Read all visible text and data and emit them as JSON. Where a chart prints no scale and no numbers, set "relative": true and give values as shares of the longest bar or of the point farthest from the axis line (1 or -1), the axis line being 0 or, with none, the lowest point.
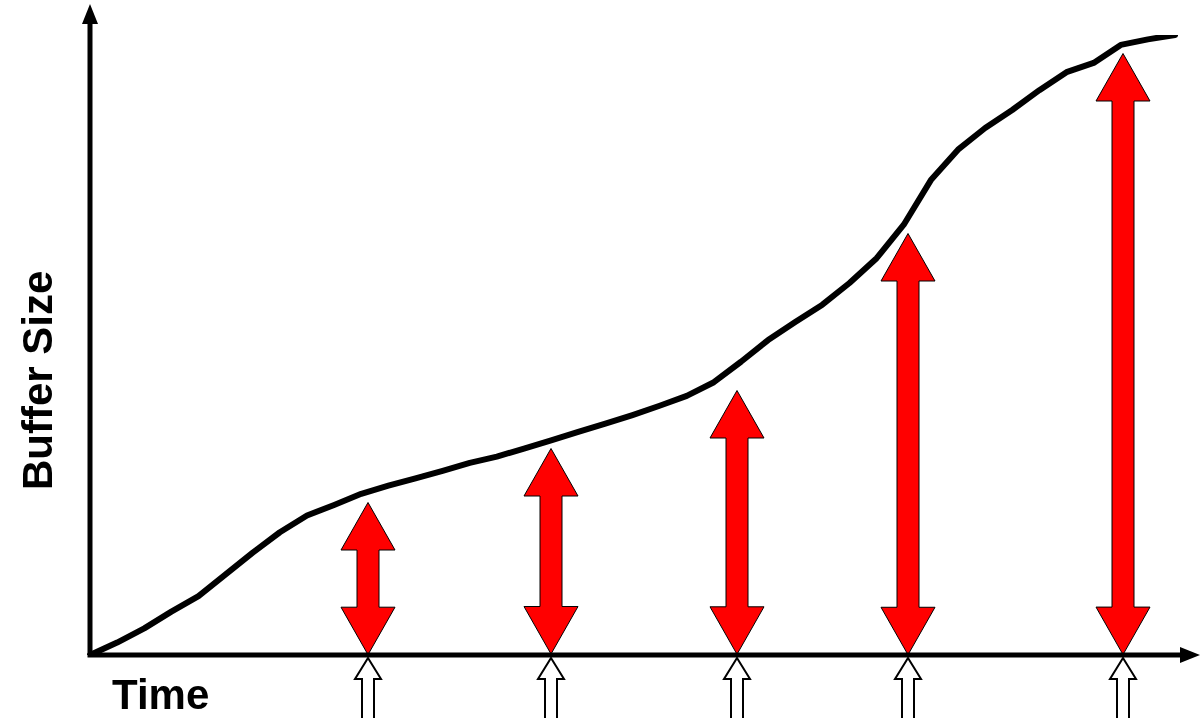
{
  "chart_data": {
    "type": "line",
    "xlabel": "Time",
    "ylabel": "Buffer Size",
    "relative": true,
    "marker": "none",
    "line_style": "solid",
    "categories": [
      null,
      null,
      null,
      null,
      null,
      null,
      null,
      null,
      null,
      null,
      null,
      null,
      null,
      null,
      null,
      null,
      null,
      null,
      null,
      null,
      null,
      null,
      null,
      null,
      null,
      null,
      null,
      null,
      null,
      null,
      null,
      null,
      null,
      null,
      null,
      null,
      null,
      null,
      null,
      null,
      null
    ],
    "series": [
      {
        "color": "#000000",
        "values": [
          0,
          0.02,
          0.043,
          0.07,
          0.095,
          0.13,
          0.165,
          0.198,
          0.225,
          0.242,
          0.26,
          0.273,
          0.285,
          0.297,
          0.31,
          0.32,
          0.333,
          0.346,
          0.36,
          0.373,
          0.387,
          0.402,
          0.418,
          0.44,
          0.473,
          0.508,
          0.537,
          0.565,
          0.6,
          0.64,
          0.694,
          0.766,
          0.815,
          0.85,
          0.879,
          0.911,
          0.94,
          0.955,
          0.984,
          0.993,
          1
        ]
      }
    ]
  }
}
